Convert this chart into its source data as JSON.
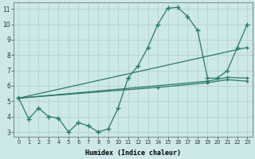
{
  "xlabel": "Humidex (Indice chaleur)",
  "bg_color": "#cce8e8",
  "grid_color": "#b8d4d4",
  "line_color": "#2a7a6a",
  "xlim": [
    -0.5,
    23.5
  ],
  "ylim": [
    2.7,
    11.4
  ],
  "yticks": [
    3,
    4,
    5,
    6,
    7,
    8,
    9,
    10,
    11
  ],
  "xticks": [
    0,
    1,
    2,
    3,
    4,
    5,
    6,
    7,
    8,
    9,
    10,
    11,
    12,
    13,
    14,
    15,
    16,
    17,
    18,
    19,
    20,
    21,
    22,
    23
  ],
  "line1_x": [
    0,
    1,
    2,
    3,
    4,
    5,
    6,
    7,
    8,
    9,
    10,
    11,
    12,
    13,
    14,
    15,
    16,
    17,
    18,
    19,
    20,
    21,
    22,
    23
  ],
  "line1_y": [
    5.2,
    3.85,
    4.55,
    4.0,
    3.9,
    3.0,
    3.6,
    3.4,
    3.0,
    3.2,
    4.55,
    6.5,
    7.3,
    8.5,
    10.0,
    11.05,
    11.1,
    10.5,
    9.6,
    6.5,
    6.5,
    7.0,
    8.5,
    10.0
  ],
  "line2_x": [
    0,
    23
  ],
  "line2_y": [
    5.2,
    8.5
  ],
  "line3_x": [
    0,
    19,
    21,
    23
  ],
  "line3_y": [
    5.2,
    6.3,
    6.55,
    6.5
  ],
  "line4_x": [
    0,
    14,
    19,
    21,
    23
  ],
  "line4_y": [
    5.2,
    5.9,
    6.2,
    6.4,
    6.3
  ]
}
